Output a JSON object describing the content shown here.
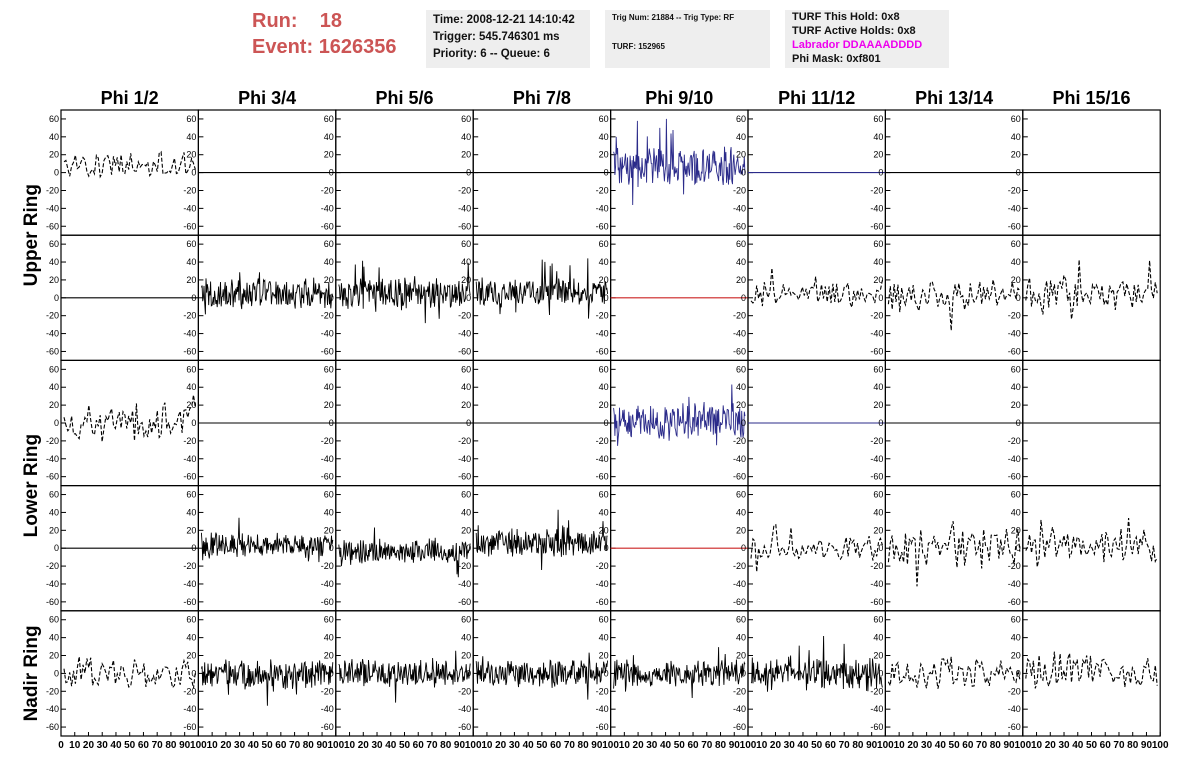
{
  "header": {
    "run_label": "Run:",
    "run_value": "18",
    "event_label": "Event:",
    "event_value": "1626356",
    "time": "Time: 2008-12-21 14:10:42",
    "trigger": "Trigger: 545.746301 ms",
    "priority": "Priority: 6 -- Queue: 6",
    "trig_num": "Trig Num: 21884 -- Trig Type: RF",
    "turf": "TURF: 152965",
    "turf_hold": "TURF This Hold: 0x8",
    "turf_active": "TURF Active Holds: 0x8",
    "labrador": "Labrador DDAAAADDDD",
    "phi_mask": "Phi Mask: 0xf801"
  },
  "colors": {
    "run_text": "#cc5555",
    "labrador_text": "#ee00ee",
    "blue_trace": "#2b2b8a",
    "red_trace": "#cc2222",
    "trace": "#000000"
  },
  "chart_data": {
    "type": "line",
    "columns": [
      "Phi 1/2",
      "Phi 3/4",
      "Phi 5/6",
      "Phi 7/8",
      "Phi 9/10",
      "Phi 11/12",
      "Phi 13/14",
      "Phi 15/16"
    ],
    "row_groups": [
      "Upper Ring",
      "Lower Ring",
      "Nadir Ring"
    ],
    "ylim": [
      -70,
      70
    ],
    "yticks": [
      60,
      40,
      20,
      0,
      -20,
      -40,
      -60
    ],
    "xlim": [
      0,
      100
    ],
    "xticks_first": [
      "0",
      "10",
      "20",
      "30",
      "40",
      "50",
      "60",
      "70",
      "80",
      "90",
      "100"
    ],
    "xticks_other": [
      "10",
      "20",
      "30",
      "40",
      "50",
      "60",
      "70",
      "80",
      "90",
      "100"
    ],
    "traces": [
      [
        {
          "s": "dash",
          "a": 15,
          "b": 8
        },
        {
          "s": "flat",
          "c": "black"
        },
        {
          "s": "flat",
          "c": "black"
        },
        {
          "s": "flat",
          "c": "black"
        },
        {
          "s": "solid",
          "c": "blue",
          "a": 22,
          "b": 6
        },
        {
          "s": "flat",
          "c": "blue"
        },
        {
          "s": "flat",
          "c": "black"
        },
        {
          "s": "flat",
          "c": "black"
        }
      ],
      [
        {
          "s": "flat",
          "c": "black"
        },
        {
          "s": "solid",
          "a": 18,
          "b": 5
        },
        {
          "s": "solid",
          "a": 18,
          "b": 5
        },
        {
          "s": "solid",
          "a": 16,
          "b": 6
        },
        {
          "s": "flat",
          "c": "red"
        },
        {
          "s": "dash",
          "a": 15,
          "b": 5
        },
        {
          "s": "dash",
          "a": 18,
          "b": 2
        },
        {
          "s": "dash",
          "a": 18,
          "b": 5
        }
      ],
      [
        {
          "s": "dash",
          "a": 22,
          "b": 0
        },
        {
          "s": "flat",
          "c": "black"
        },
        {
          "s": "flat",
          "c": "black"
        },
        {
          "s": "flat",
          "c": "black"
        },
        {
          "s": "solid",
          "c": "blue",
          "a": 20,
          "b": 3
        },
        {
          "s": "flat",
          "c": "blue"
        },
        {
          "s": "flat",
          "c": "black"
        },
        {
          "s": "flat",
          "c": "black"
        }
      ],
      [
        {
          "s": "flat",
          "c": "black"
        },
        {
          "s": "solid",
          "a": 14,
          "b": 3
        },
        {
          "s": "solid",
          "a": 14,
          "b": -3
        },
        {
          "s": "solid",
          "a": 16,
          "b": 6
        },
        {
          "s": "flat",
          "c": "red"
        },
        {
          "s": "dash",
          "a": 14,
          "b": 0
        },
        {
          "s": "dash",
          "a": 22,
          "b": 0
        },
        {
          "s": "dash",
          "a": 18,
          "b": 3
        }
      ],
      [
        {
          "s": "dash",
          "a": 18,
          "b": 0
        },
        {
          "s": "solid",
          "a": 16,
          "b": -2
        },
        {
          "s": "solid",
          "a": 16,
          "b": 0
        },
        {
          "s": "solid",
          "a": 16,
          "b": 0
        },
        {
          "s": "solid",
          "a": 16,
          "b": 0
        },
        {
          "s": "solid",
          "a": 20,
          "b": 0
        },
        {
          "s": "dash",
          "a": 20,
          "b": 0
        },
        {
          "s": "dash",
          "a": 20,
          "b": 2
        }
      ]
    ]
  }
}
